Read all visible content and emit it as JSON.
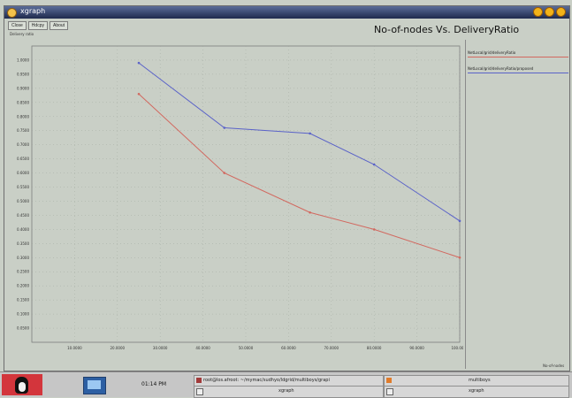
{
  "window": {
    "title": "xgraph",
    "toolbar": [
      "Close",
      "Hdcpy",
      "About"
    ],
    "subtitle": "Delivery ratio",
    "graph_title": "No-of-nodes Vs. DeliveryRatio",
    "x_label": "No-of-nodes"
  },
  "legend": {
    "items": [
      {
        "label": "NetLocal/grid/deliveryRatio",
        "color": "#d2685f"
      },
      {
        "label": "NetLocal/grid/deliveryRatio/proposed",
        "color": "#5a62c8"
      }
    ]
  },
  "chart_data": {
    "type": "line",
    "title": "No-of-nodes Vs. DeliveryRatio",
    "xlabel": "No-of-nodes",
    "ylabel": "Delivery ratio",
    "xlim": [
      0,
      100
    ],
    "ylim": [
      0,
      1.05
    ],
    "x": [
      25,
      45,
      65,
      80,
      100
    ],
    "series": [
      {
        "name": "NetLocal/grid/deliveryRatio",
        "color": "#d2685f",
        "values": [
          0.88,
          0.6,
          0.46,
          0.4,
          0.3
        ]
      },
      {
        "name": "NetLocal/grid/deliveryRatio/proposed",
        "color": "#5a62c8",
        "values": [
          0.99,
          0.76,
          0.74,
          0.63,
          0.43
        ]
      }
    ],
    "xticks": [
      10,
      20,
      30,
      40,
      50,
      60,
      70,
      80,
      90,
      100
    ],
    "yticks": [
      0.05,
      0.1,
      0.15,
      0.2,
      0.25,
      0.3,
      0.35,
      0.4,
      0.45,
      0.5,
      0.55,
      0.6,
      0.65,
      0.7,
      0.75,
      0.8,
      0.85,
      0.9,
      0.95,
      1.0
    ],
    "grid": true
  },
  "taskbar": {
    "clock": "01:14 PM",
    "tasks": [
      {
        "label": "root@los.afroot: ~/mymac/sudhyo/ldgrid/multiboys/grapi"
      },
      {
        "label": "xgraph"
      },
      {
        "label": "multiboys"
      },
      {
        "label": "xgraph"
      }
    ]
  }
}
